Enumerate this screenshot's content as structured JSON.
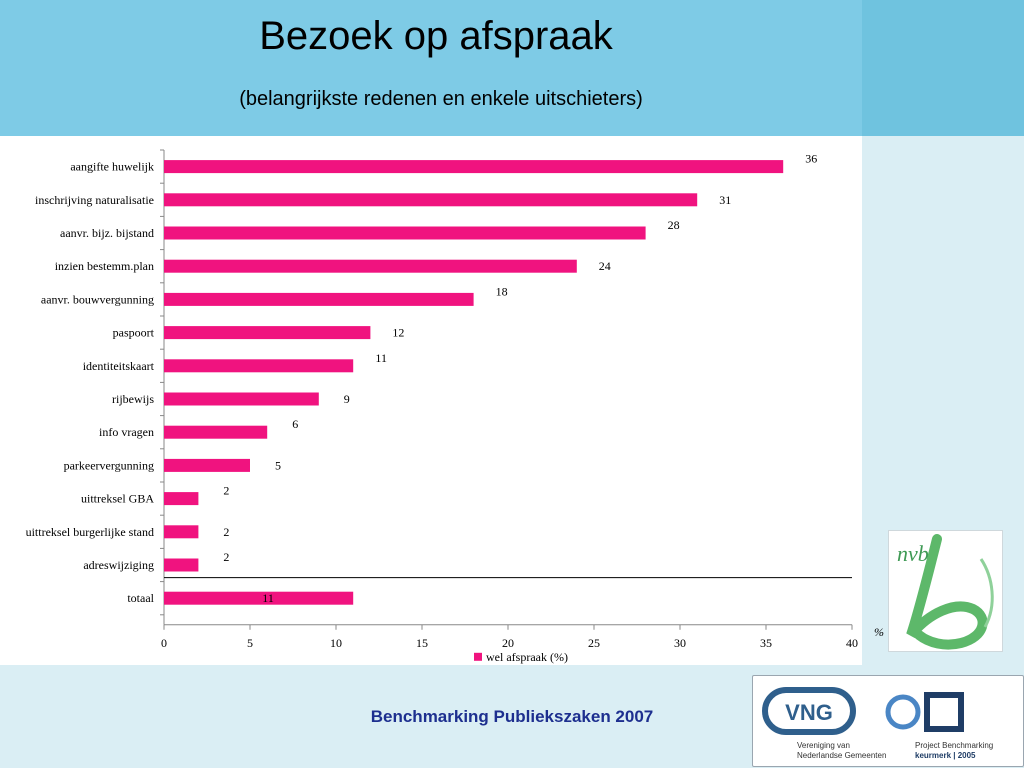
{
  "slide": {
    "title": "Bezoek op afspraak",
    "subtitle": "(belangrijkste redenen en enkele uitschieters)",
    "footer": "Benchmarking Publiekszaken 2007",
    "unit_label": "%",
    "colors": {
      "bar": "#f0137f",
      "header": "#7ecbe6",
      "side": "#daeef4",
      "footer_text": "#1d2f8f"
    }
  },
  "logos": {
    "nvb": {
      "text": "nvb"
    },
    "vng": {
      "abbr": "VNG",
      "line1": "Vereniging van",
      "line2": "Nederlandse Gemeenten"
    },
    "project": {
      "line1": "Project Benchmarking",
      "line2": "keurmerk | 2005"
    }
  },
  "chart_data": {
    "type": "bar",
    "orientation": "horizontal",
    "categories": [
      "aangifte huwelijk",
      "inschrijving naturalisatie",
      "aanvr. bijz. bijstand",
      "inzien bestemm.plan",
      "aanvr. bouwvergunning",
      "paspoort",
      "identiteitskaart",
      "rijbewijs",
      "info vragen",
      "parkeervergunning",
      "uittreksel GBA",
      "uittreksel burgerlijke stand",
      "adreswijziging",
      "totaal"
    ],
    "series": [
      {
        "name": "wel afspraak (%)",
        "values": [
          36,
          31,
          28,
          24,
          18,
          12,
          11,
          9,
          6,
          5,
          2,
          2,
          2,
          11
        ]
      }
    ],
    "xlim": [
      0,
      40
    ],
    "xticks": [
      0,
      5,
      10,
      15,
      20,
      25,
      30,
      35,
      40
    ],
    "legend_position": "bottom",
    "grid": false,
    "separator_before": "totaal"
  }
}
